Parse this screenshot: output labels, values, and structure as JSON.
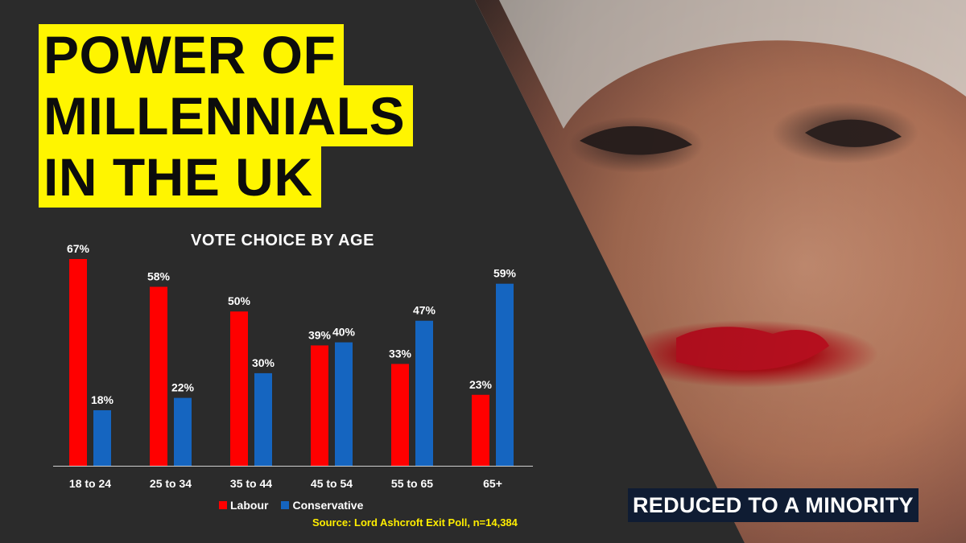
{
  "headline": {
    "line1": "POWER OF",
    "line2": "MILLENNIALS",
    "line3": "IN THE UK"
  },
  "badge_text": "REDUCED TO A MINORITY",
  "colors": {
    "labour": "#ff0000",
    "conservative": "#1565c0",
    "headline_bg": "#fff500",
    "background": "#2b2b2b",
    "source_text": "#ffee00"
  },
  "chart_data": {
    "type": "bar",
    "title": "VOTE CHOICE BY AGE",
    "categories": [
      "18 to 24",
      "25 to 34",
      "35 to 44",
      "45 to 54",
      "55 to 65",
      "65+"
    ],
    "series": [
      {
        "name": "Labour",
        "values": [
          67,
          58,
          50,
          39,
          33,
          23
        ],
        "labels": [
          "67%",
          "58%",
          "50%",
          "39%",
          "33%",
          "23%"
        ]
      },
      {
        "name": "Conservative",
        "values": [
          18,
          22,
          30,
          40,
          47,
          59
        ],
        "labels": [
          "18%",
          "22%",
          "30%",
          "40%",
          "47%",
          "59%"
        ]
      }
    ],
    "ylim": [
      0,
      67
    ],
    "grid": false,
    "legend": "bottom",
    "source": "Source: Lord Ashcroft Exit Poll, n=14,384"
  }
}
